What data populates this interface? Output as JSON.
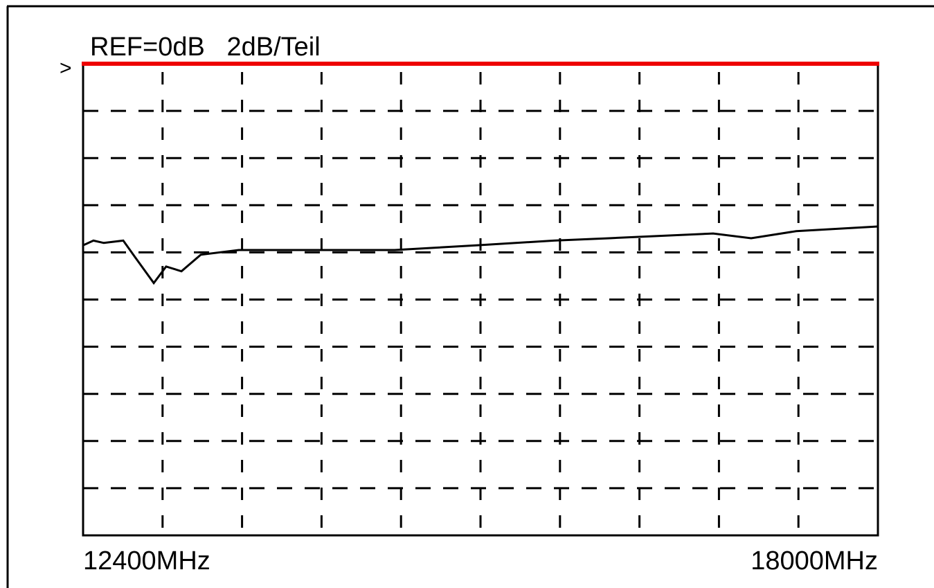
{
  "chart_data": {
    "type": "line",
    "title": "REF=0dB   2dB/Teil",
    "ref_marker": ">",
    "reference_level": 0,
    "reference_color": "#ee0000",
    "xlim": [
      12400,
      18000
    ],
    "ylim": [
      -20,
      0
    ],
    "xticks": [
      {
        "value": 12400,
        "label": "12400MHz"
      },
      {
        "value": 18000,
        "label": "18000MHz"
      }
    ],
    "x_divisions": 10,
    "y_divisions": 10,
    "grid": true,
    "series": [
      {
        "color": "#000000",
        "x": [
          12400,
          12473,
          12546,
          12683,
          12766,
          12898,
          12985,
          13093,
          13229,
          13497,
          14107,
          14595,
          15180,
          15717,
          16107,
          16839,
          17107,
          17424,
          18000
        ],
        "values": [
          -7.7,
          -7.5,
          -7.6,
          -7.5,
          -8.2,
          -9.3,
          -8.6,
          -8.8,
          -8.1,
          -7.9,
          -7.9,
          -7.9,
          -7.7,
          -7.5,
          -7.4,
          -7.2,
          -7.4,
          -7.1,
          -6.9
        ]
      }
    ]
  }
}
